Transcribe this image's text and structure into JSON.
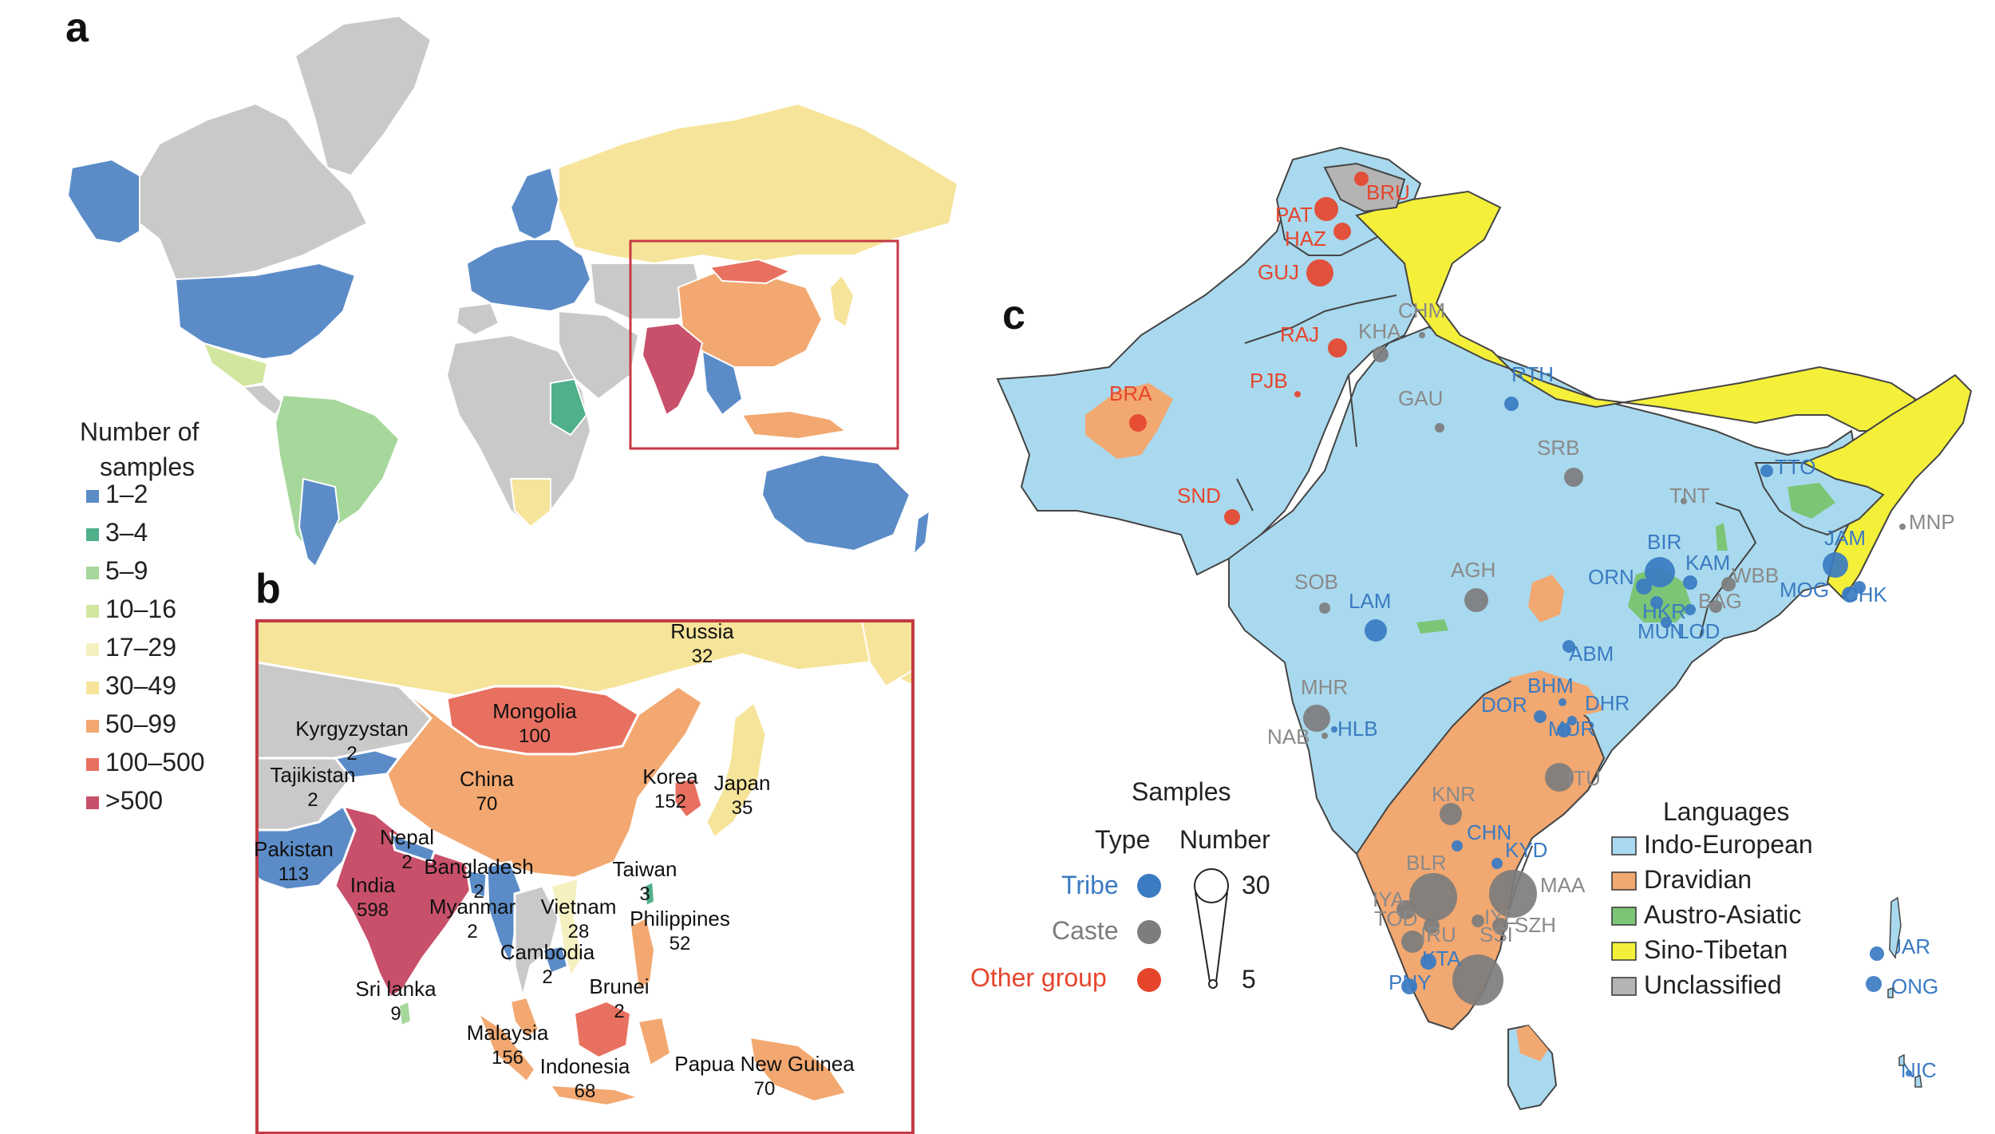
{
  "colors": {
    "c1_2": "#5b8cc8",
    "c3_4": "#4fb08a",
    "c5_9": "#a6d79b",
    "c10_16": "#d2e6a0",
    "c17_29": "#f5f0c0",
    "c30_49": "#f6e49a",
    "c50_99": "#f2a870",
    "c100_500": "#e87060",
    "c500p": "#c8506a",
    "nodata": "#c9c9c9",
    "indo_european": "#a9d9ee",
    "dravidian": "#f2a871",
    "austro_asiatic": "#7cc576",
    "sino_tibetan": "#f4f03a",
    "unclassified": "#b4b4b4",
    "tribe": "#3a7bc2",
    "caste": "#7d7d7d",
    "other_group": "#e6452c",
    "frame": "#c43a45"
  },
  "panels": {
    "a": "a",
    "b": "b",
    "c": "c"
  },
  "legend_samples": {
    "title_line1": "Number of",
    "title_line2": "samples",
    "items": [
      {
        "label": "1–2",
        "color": "#5b8cc8"
      },
      {
        "label": "3–4",
        "color": "#4fb08a"
      },
      {
        "label": "5–9",
        "color": "#a6d79b"
      },
      {
        "label": "10–16",
        "color": "#d2e6a0"
      },
      {
        "label": "17–29",
        "color": "#f5f0c0"
      },
      {
        "label": "30–49",
        "color": "#f6e49a"
      },
      {
        "label": "50–99",
        "color": "#f2a870"
      },
      {
        "label": "100–500",
        "color": "#e87060"
      },
      {
        "label": ">500",
        "color": "#c8506a"
      }
    ]
  },
  "countries_b": [
    {
      "name": "Russia",
      "count": "32"
    },
    {
      "name": "Mongolia",
      "count": "100"
    },
    {
      "name": "Kyrgyzystan",
      "count": "2"
    },
    {
      "name": "Tajikistan",
      "count": "2"
    },
    {
      "name": "China",
      "count": "70"
    },
    {
      "name": "Korea",
      "count": "152"
    },
    {
      "name": "Japan",
      "count": "35"
    },
    {
      "name": "Pakistan",
      "count": "113"
    },
    {
      "name": "Nepal",
      "count": "2"
    },
    {
      "name": "Bangladesh",
      "count": "2"
    },
    {
      "name": "India",
      "count": "598"
    },
    {
      "name": "Myanmar",
      "count": "2"
    },
    {
      "name": "Taiwan",
      "count": "3"
    },
    {
      "name": "Vietnam",
      "count": "28"
    },
    {
      "name": "Philippines",
      "count": "52"
    },
    {
      "name": "Cambodia",
      "count": "2"
    },
    {
      "name": "Sri lanka",
      "count": "9"
    },
    {
      "name": "Brunei",
      "count": "2"
    },
    {
      "name": "Malaysia",
      "count": "156"
    },
    {
      "name": "Indonesia",
      "count": "68"
    },
    {
      "name": "Papua New Guinea",
      "count": "70"
    }
  ],
  "sites_c": [
    {
      "code": "BRU",
      "type": "other"
    },
    {
      "code": "PAT",
      "type": "other"
    },
    {
      "code": "HAZ",
      "type": "other"
    },
    {
      "code": "GUJ",
      "type": "other"
    },
    {
      "code": "CHM",
      "type": "caste"
    },
    {
      "code": "RAJ",
      "type": "other"
    },
    {
      "code": "KHA",
      "type": "caste"
    },
    {
      "code": "PJB",
      "type": "other"
    },
    {
      "code": "RTH",
      "type": "tribe"
    },
    {
      "code": "BRA",
      "type": "other"
    },
    {
      "code": "GAU",
      "type": "caste"
    },
    {
      "code": "SRB",
      "type": "caste"
    },
    {
      "code": "TTO",
      "type": "tribe"
    },
    {
      "code": "SND",
      "type": "other"
    },
    {
      "code": "TNT",
      "type": "caste"
    },
    {
      "code": "MNP",
      "type": "caste"
    },
    {
      "code": "JAM",
      "type": "tribe"
    },
    {
      "code": "BIR",
      "type": "tribe"
    },
    {
      "code": "KAM",
      "type": "tribe"
    },
    {
      "code": "SOB",
      "type": "caste"
    },
    {
      "code": "AGH",
      "type": "caste"
    },
    {
      "code": "ORN",
      "type": "tribe"
    },
    {
      "code": "WBB",
      "type": "caste"
    },
    {
      "code": "MOG",
      "type": "tribe"
    },
    {
      "code": "CHK",
      "type": "tribe"
    },
    {
      "code": "LAM",
      "type": "tribe"
    },
    {
      "code": "HKR",
      "type": "tribe"
    },
    {
      "code": "BAG",
      "type": "caste"
    },
    {
      "code": "MUN",
      "type": "tribe"
    },
    {
      "code": "LOD",
      "type": "tribe"
    },
    {
      "code": "ABM",
      "type": "tribe"
    },
    {
      "code": "MHR",
      "type": "caste"
    },
    {
      "code": "BHM",
      "type": "tribe"
    },
    {
      "code": "DOR",
      "type": "tribe"
    },
    {
      "code": "DHR",
      "type": "tribe"
    },
    {
      "code": "NAB",
      "type": "caste"
    },
    {
      "code": "HLB",
      "type": "tribe"
    },
    {
      "code": "MUR",
      "type": "tribe"
    },
    {
      "code": "ITU",
      "type": "caste"
    },
    {
      "code": "KNR",
      "type": "caste"
    },
    {
      "code": "CHN",
      "type": "tribe"
    },
    {
      "code": "BLR",
      "type": "caste"
    },
    {
      "code": "KYD",
      "type": "tribe"
    },
    {
      "code": "MAA",
      "type": "caste"
    },
    {
      "code": "IYA",
      "type": "caste"
    },
    {
      "code": "TOD",
      "type": "caste"
    },
    {
      "code": "IYE",
      "type": "caste"
    },
    {
      "code": "SZH",
      "type": "caste"
    },
    {
      "code": "IRU",
      "type": "caste"
    },
    {
      "code": "SSI",
      "type": "caste"
    },
    {
      "code": "KTA",
      "type": "tribe"
    },
    {
      "code": "PNY",
      "type": "tribe"
    },
    {
      "code": "JAR",
      "type": "tribe"
    },
    {
      "code": "ONG",
      "type": "tribe"
    },
    {
      "code": "NIC",
      "type": "tribe"
    }
  ],
  "legend_type": {
    "title": "Samples",
    "type_header": "Type",
    "number_header": "Number",
    "tribe": "Tribe",
    "caste": "Caste",
    "other_group": "Other group",
    "num_max": "30",
    "num_min": "5"
  },
  "legend_languages": {
    "title": "Languages",
    "items": [
      {
        "label": "Indo-European",
        "color": "#a9d9ee"
      },
      {
        "label": "Dravidian",
        "color": "#f2a871"
      },
      {
        "label": "Austro-Asiatic",
        "color": "#7cc576"
      },
      {
        "label": "Sino-Tibetan",
        "color": "#f4f03a"
      },
      {
        "label": "Unclassified",
        "color": "#b4b4b4"
      }
    ]
  }
}
